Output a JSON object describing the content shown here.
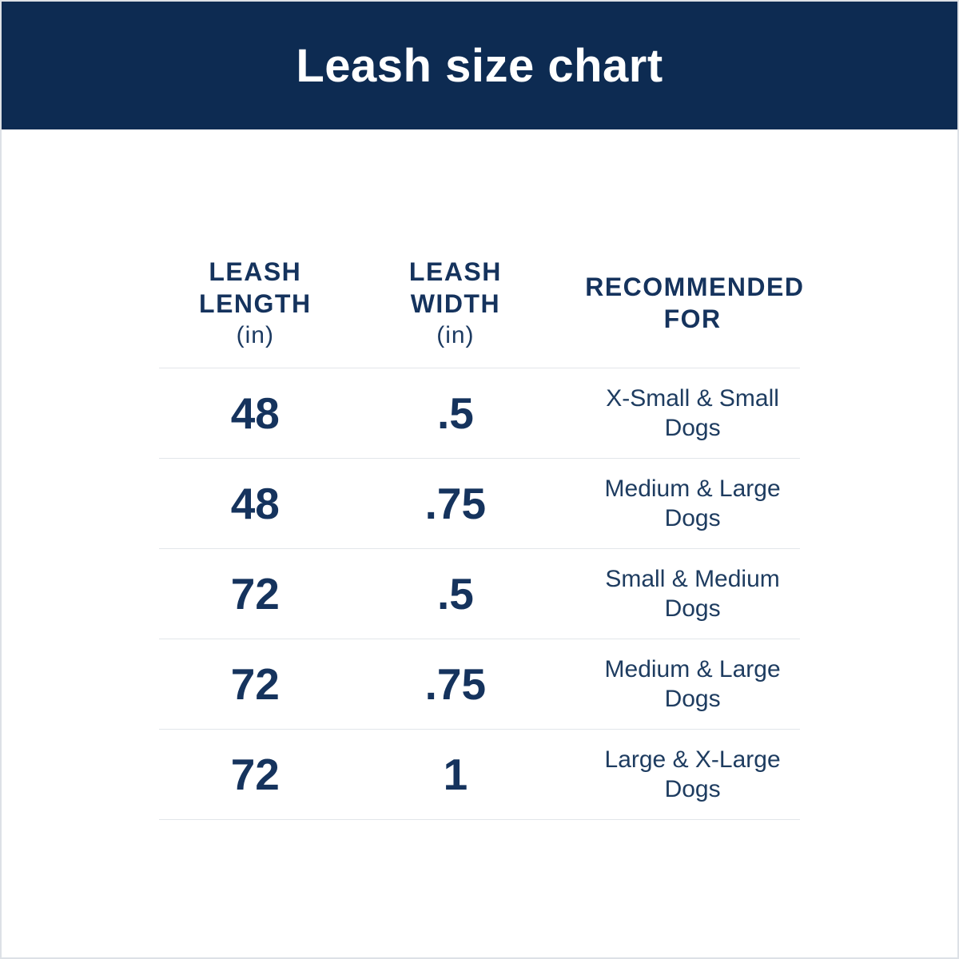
{
  "page": {
    "title": "Leash size chart"
  },
  "colors": {
    "header_bg": "#0d2b52",
    "title_text": "#ffffff",
    "table_text_navy": "#15335d",
    "divider": "#e2e6ea"
  },
  "table": {
    "header": {
      "col1": {
        "line1": "LEASH",
        "line2": "LENGTH",
        "unit": "(in)"
      },
      "col2": {
        "line1": "LEASH",
        "line2": "WIDTH",
        "unit": "(in)"
      },
      "col3": {
        "line1": "RECOMMENDED",
        "line2": "FOR"
      }
    },
    "rows": [
      {
        "length": "48",
        "width": ".5",
        "recommended": "X-Small & Small Dogs"
      },
      {
        "length": "48",
        "width": ".75",
        "recommended": "Medium & Large Dogs"
      },
      {
        "length": "72",
        "width": ".5",
        "recommended": "Small & Medium Dogs"
      },
      {
        "length": "72",
        "width": ".75",
        "recommended": "Medium & Large Dogs"
      },
      {
        "length": "72",
        "width": "1",
        "recommended": "Large & X-Large Dogs"
      }
    ]
  },
  "chart_data": {
    "type": "table",
    "title": "Leash size chart",
    "columns": [
      "Leash Length (in)",
      "Leash Width (in)",
      "Recommended For"
    ],
    "rows": [
      [
        "48",
        ".5",
        "X-Small & Small Dogs"
      ],
      [
        "48",
        ".75",
        "Medium & Large Dogs"
      ],
      [
        "72",
        ".5",
        "Small & Medium Dogs"
      ],
      [
        "72",
        ".75",
        "Medium & Large Dogs"
      ],
      [
        "72",
        "1",
        "Large & X-Large Dogs"
      ]
    ],
    "layout": {
      "grid": false,
      "header_band_color": "#0d2b52",
      "row_separators": true
    }
  }
}
